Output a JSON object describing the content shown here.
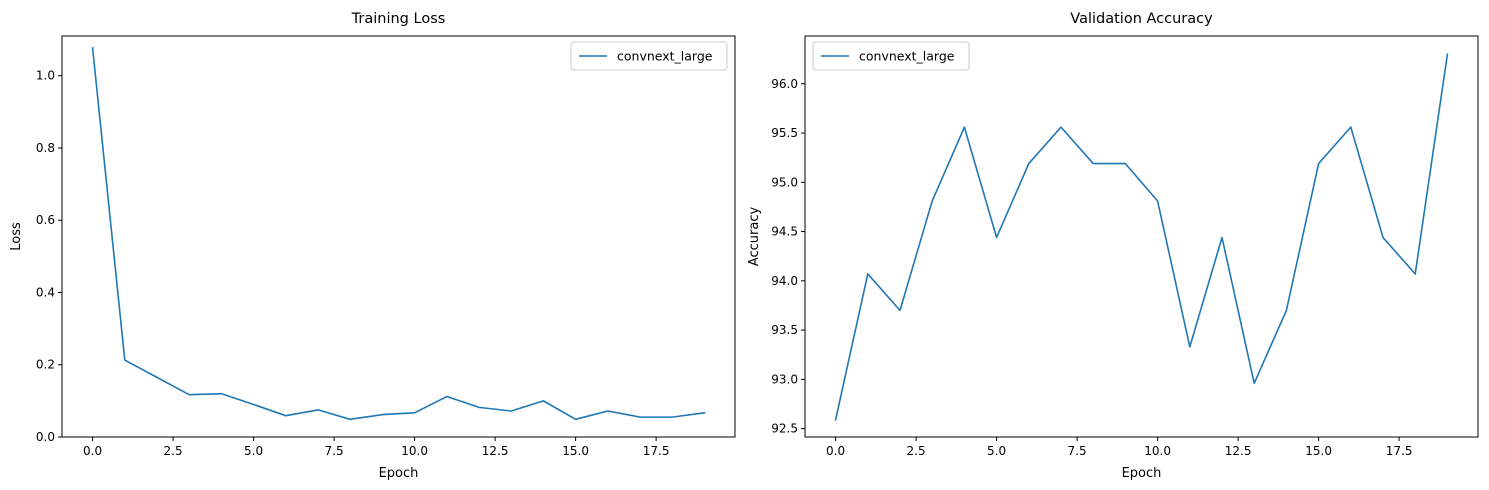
{
  "chart_data": [
    {
      "type": "line",
      "title": "Training Loss",
      "xlabel": "Epoch",
      "ylabel": "Loss",
      "xlim": [
        -0.95,
        19.95
      ],
      "ylim": [
        0.0,
        1.11
      ],
      "xticks": [
        0.0,
        2.5,
        5.0,
        7.5,
        10.0,
        12.5,
        15.0,
        17.5
      ],
      "xtick_labels": [
        "0.0",
        "2.5",
        "5.0",
        "7.5",
        "10.0",
        "12.5",
        "15.0",
        "17.5"
      ],
      "yticks": [
        0.0,
        0.2,
        0.4,
        0.6,
        0.8,
        1.0
      ],
      "ytick_labels": [
        "0.0",
        "0.2",
        "0.4",
        "0.6",
        "0.8",
        "1.0"
      ],
      "legend_position": "top-right",
      "grid": false,
      "series": [
        {
          "name": "convnext_large",
          "color": "#1f77b4",
          "x": [
            0,
            1,
            2,
            3,
            4,
            5,
            6,
            7,
            8,
            9,
            10,
            11,
            12,
            13,
            14,
            15,
            16,
            17,
            18,
            19
          ],
          "values": [
            1.077,
            0.213,
            0.165,
            0.117,
            0.12,
            0.09,
            0.059,
            0.075,
            0.049,
            0.062,
            0.067,
            0.112,
            0.082,
            0.072,
            0.1,
            0.049,
            0.072,
            0.055,
            0.055,
            0.067
          ]
        }
      ]
    },
    {
      "type": "line",
      "title": "Validation Accuracy",
      "xlabel": "Epoch",
      "ylabel": "Accuracy",
      "xlim": [
        -0.95,
        19.95
      ],
      "ylim": [
        92.415,
        96.485
      ],
      "xticks": [
        0.0,
        2.5,
        5.0,
        7.5,
        10.0,
        12.5,
        15.0,
        17.5
      ],
      "xtick_labels": [
        "0.0",
        "2.5",
        "5.0",
        "7.5",
        "10.0",
        "12.5",
        "15.0",
        "17.5"
      ],
      "yticks": [
        92.5,
        93.0,
        93.5,
        94.0,
        94.5,
        95.0,
        95.5,
        96.0
      ],
      "ytick_labels": [
        "92.5",
        "93.0",
        "93.5",
        "94.0",
        "94.5",
        "95.0",
        "95.5",
        "96.0"
      ],
      "legend_position": "top-left",
      "grid": false,
      "series": [
        {
          "name": "convnext_large",
          "color": "#1f77b4",
          "x": [
            0,
            1,
            2,
            3,
            4,
            5,
            6,
            7,
            8,
            9,
            10,
            11,
            12,
            13,
            14,
            15,
            16,
            17,
            18,
            19
          ],
          "values": [
            92.59,
            94.07,
            93.7,
            94.81,
            95.56,
            94.44,
            95.19,
            95.56,
            95.19,
            95.19,
            94.81,
            93.33,
            94.44,
            92.96,
            93.7,
            95.19,
            95.56,
            94.44,
            94.07,
            96.3
          ]
        }
      ]
    }
  ]
}
